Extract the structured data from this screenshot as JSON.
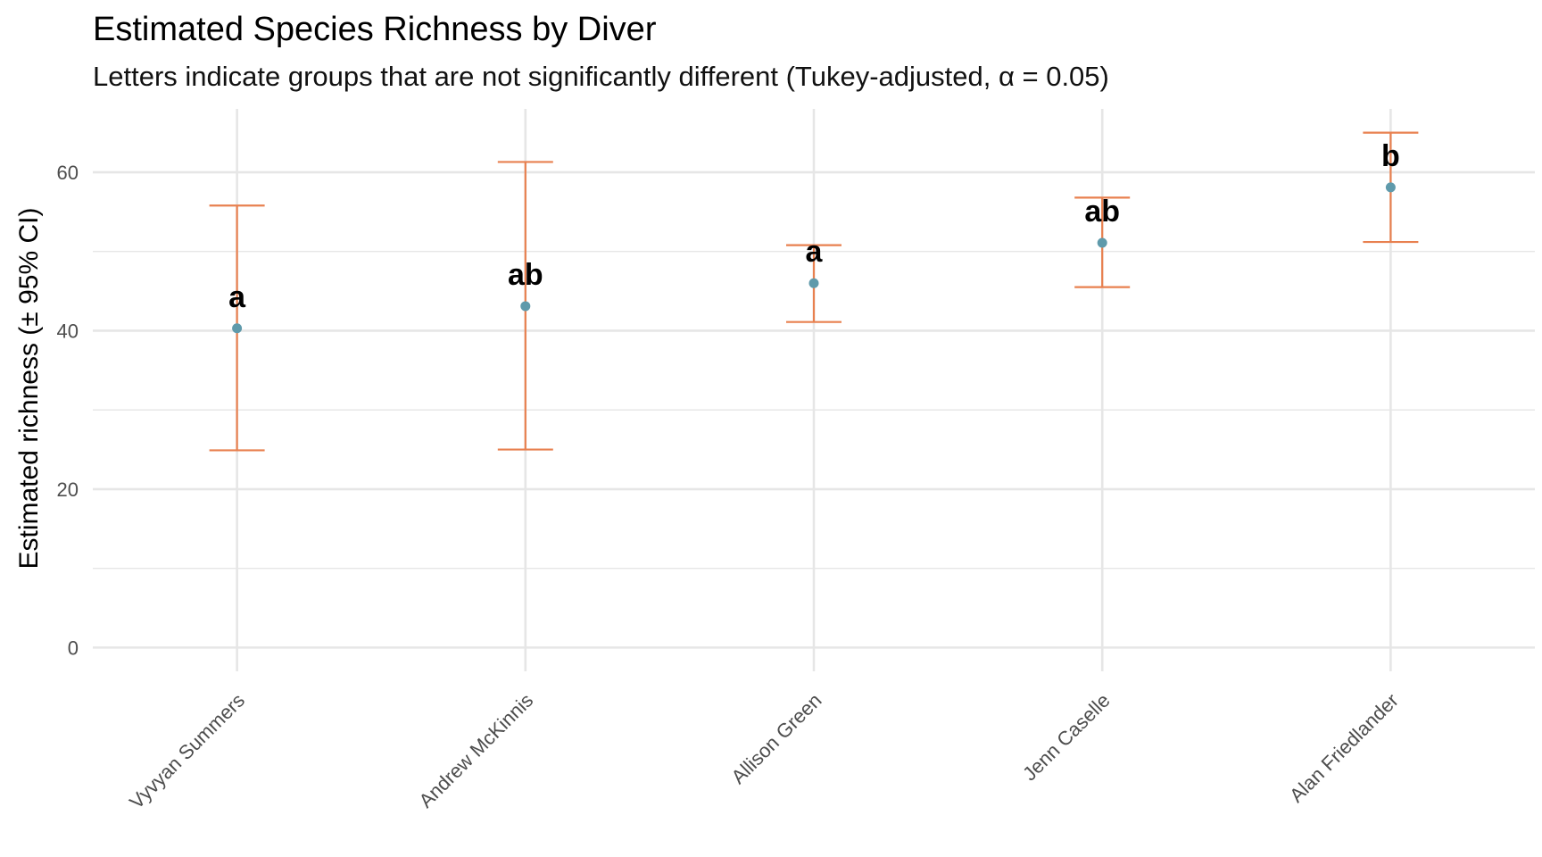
{
  "chart_data": {
    "type": "errorbar",
    "title": "Estimated Species Richness by Diver",
    "subtitle": "Letters indicate groups that are not significantly different (Tukey-adjusted, α = 0.05)",
    "xlabel": "",
    "ylabel": "Estimated richness (± 95% CI)",
    "ylim": [
      -3,
      68
    ],
    "yticks": [
      0,
      20,
      40,
      60
    ],
    "grid": true,
    "categories": [
      "Vyvyan Summers",
      "Andrew McKinnis",
      "Allison Green",
      "Jenn Caselle",
      "Alan Friedlander"
    ],
    "estimate": [
      40.3,
      43.1,
      46.0,
      51.1,
      58.1
    ],
    "lower": [
      24.9,
      25.0,
      41.1,
      45.5,
      51.2
    ],
    "upper": [
      55.8,
      61.3,
      50.8,
      56.8,
      65.0
    ],
    "letters": [
      "a",
      "ab",
      "a",
      "ab",
      "b"
    ],
    "colors": {
      "errorbar": "#e8804f",
      "point": "#5f9aab",
      "grid": "#e6e6e6"
    }
  }
}
